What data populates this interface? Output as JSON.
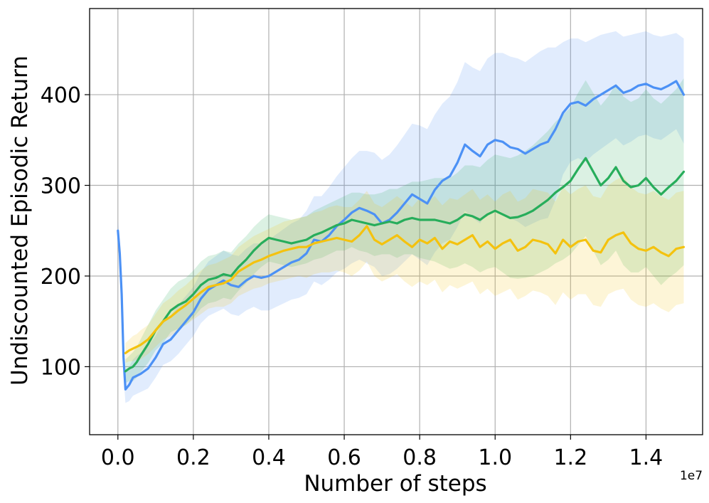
{
  "chart_data": {
    "type": "line",
    "title": "",
    "xlabel": "Number of steps",
    "ylabel": "Undiscounted Episodic Return",
    "x_offset_label": "1e7",
    "x_scale": 10000000,
    "xlim": [
      -0.075,
      1.55
    ],
    "ylim": [
      25,
      495
    ],
    "xticks": [
      0.0,
      0.2,
      0.4,
      0.6,
      0.8,
      1.0,
      1.2,
      1.4
    ],
    "xtick_labels": [
      "0.0",
      "0.2",
      "0.4",
      "0.6",
      "0.8",
      "1.0",
      "1.2",
      "1.4"
    ],
    "yticks": [
      100,
      200,
      300,
      400
    ],
    "ytick_labels": [
      "100",
      "200",
      "300",
      "400"
    ],
    "grid": true,
    "legend": "none",
    "colors": {
      "blue": "#4c91f5",
      "green": "#27ad5b",
      "yellow": "#f4c20f"
    },
    "series": [
      {
        "color": "blue",
        "x": [
          0.0,
          0.005,
          0.01,
          0.015,
          0.02,
          0.03,
          0.04,
          0.05,
          0.06,
          0.08,
          0.1,
          0.12,
          0.14,
          0.16,
          0.18,
          0.2,
          0.22,
          0.24,
          0.26,
          0.28,
          0.3,
          0.32,
          0.34,
          0.36,
          0.38,
          0.4,
          0.42,
          0.44,
          0.46,
          0.48,
          0.5,
          0.52,
          0.54,
          0.56,
          0.58,
          0.6,
          0.62,
          0.64,
          0.66,
          0.68,
          0.7,
          0.72,
          0.74,
          0.76,
          0.78,
          0.8,
          0.82,
          0.84,
          0.86,
          0.88,
          0.9,
          0.92,
          0.94,
          0.96,
          0.98,
          1.0,
          1.02,
          1.04,
          1.06,
          1.08,
          1.1,
          1.12,
          1.14,
          1.16,
          1.18,
          1.2,
          1.22,
          1.24,
          1.26,
          1.28,
          1.3,
          1.32,
          1.34,
          1.36,
          1.38,
          1.4,
          1.42,
          1.44,
          1.46,
          1.48,
          1.5
        ],
        "y": [
          250,
          225,
          180,
          110,
          75,
          80,
          88,
          90,
          92,
          98,
          110,
          125,
          130,
          140,
          150,
          160,
          175,
          185,
          190,
          195,
          190,
          188,
          195,
          200,
          198,
          200,
          205,
          210,
          215,
          218,
          225,
          240,
          238,
          245,
          255,
          262,
          270,
          275,
          272,
          268,
          258,
          262,
          270,
          280,
          290,
          285,
          280,
          295,
          305,
          310,
          325,
          345,
          338,
          332,
          345,
          350,
          348,
          342,
          340,
          335,
          340,
          345,
          348,
          362,
          380,
          390,
          392,
          388,
          395,
          400,
          405,
          410,
          402,
          405,
          410,
          412,
          408,
          406,
          410,
          415,
          400
        ],
        "upper": [
          262,
          240,
          200,
          130,
          95,
          100,
          108,
          112,
          115,
          122,
          134,
          150,
          156,
          168,
          178,
          188,
          204,
          216,
          222,
          228,
          224,
          222,
          230,
          236,
          236,
          240,
          246,
          252,
          258,
          262,
          272,
          288,
          288,
          298,
          310,
          320,
          330,
          338,
          338,
          336,
          328,
          334,
          344,
          356,
          368,
          366,
          362,
          378,
          390,
          398,
          414,
          436,
          430,
          426,
          440,
          446,
          446,
          442,
          440,
          436,
          442,
          448,
          452,
          452,
          458,
          462,
          462,
          458,
          462,
          466,
          468,
          470,
          464,
          466,
          468,
          470,
          466,
          464,
          466,
          468,
          462
        ],
        "lower": [
          238,
          212,
          165,
          90,
          60,
          62,
          68,
          70,
          72,
          76,
          88,
          102,
          106,
          114,
          124,
          134,
          148,
          156,
          160,
          164,
          158,
          156,
          162,
          166,
          162,
          162,
          166,
          170,
          174,
          176,
          180,
          194,
          190,
          196,
          204,
          208,
          214,
          218,
          214,
          210,
          200,
          202,
          208,
          216,
          224,
          218,
          212,
          226,
          236,
          240,
          254,
          272,
          264,
          258,
          270,
          274,
          270,
          264,
          260,
          254,
          258,
          262,
          264,
          284,
          312,
          326,
          330,
          326,
          334,
          340,
          346,
          352,
          344,
          348,
          354,
          356,
          352,
          350,
          356,
          362,
          346
        ]
      },
      {
        "color": "green",
        "x": [
          0.02,
          0.03,
          0.04,
          0.05,
          0.06,
          0.08,
          0.1,
          0.12,
          0.14,
          0.16,
          0.18,
          0.2,
          0.22,
          0.24,
          0.26,
          0.28,
          0.3,
          0.32,
          0.34,
          0.36,
          0.38,
          0.4,
          0.42,
          0.44,
          0.46,
          0.48,
          0.5,
          0.52,
          0.54,
          0.56,
          0.58,
          0.6,
          0.62,
          0.64,
          0.66,
          0.68,
          0.7,
          0.72,
          0.74,
          0.76,
          0.78,
          0.8,
          0.82,
          0.84,
          0.86,
          0.88,
          0.9,
          0.92,
          0.94,
          0.96,
          0.98,
          1.0,
          1.02,
          1.04,
          1.06,
          1.08,
          1.1,
          1.12,
          1.14,
          1.16,
          1.18,
          1.2,
          1.22,
          1.24,
          1.26,
          1.28,
          1.3,
          1.32,
          1.34,
          1.36,
          1.38,
          1.4,
          1.42,
          1.44,
          1.46,
          1.48,
          1.5
        ],
        "y": [
          95,
          98,
          100,
          105,
          112,
          125,
          140,
          150,
          162,
          168,
          172,
          180,
          190,
          196,
          198,
          202,
          200,
          210,
          218,
          228,
          236,
          242,
          240,
          238,
          236,
          238,
          240,
          245,
          248,
          252,
          256,
          258,
          262,
          260,
          258,
          256,
          258,
          260,
          258,
          262,
          264,
          262,
          262,
          262,
          260,
          258,
          262,
          268,
          266,
          262,
          268,
          272,
          268,
          264,
          265,
          268,
          272,
          278,
          284,
          292,
          298,
          305,
          318,
          330,
          315,
          300,
          308,
          320,
          305,
          298,
          300,
          308,
          298,
          290,
          298,
          305,
          315
        ],
        "upper": [
          108,
          112,
          116,
          122,
          130,
          146,
          162,
          174,
          186,
          194,
          198,
          206,
          216,
          222,
          224,
          228,
          226,
          236,
          244,
          254,
          262,
          268,
          266,
          264,
          262,
          264,
          266,
          272,
          276,
          280,
          284,
          288,
          292,
          292,
          290,
          290,
          292,
          296,
          296,
          300,
          304,
          304,
          306,
          308,
          308,
          308,
          314,
          322,
          322,
          320,
          328,
          334,
          332,
          330,
          333,
          338,
          344,
          352,
          360,
          370,
          378,
          386,
          402,
          416,
          402,
          388,
          398,
          412,
          398,
          392,
          396,
          406,
          396,
          390,
          398,
          406,
          418
        ],
        "lower": [
          82,
          84,
          84,
          88,
          94,
          104,
          118,
          126,
          138,
          142,
          146,
          154,
          164,
          170,
          172,
          176,
          174,
          184,
          192,
          202,
          210,
          216,
          214,
          212,
          210,
          212,
          214,
          218,
          220,
          224,
          228,
          228,
          232,
          228,
          226,
          222,
          224,
          224,
          220,
          224,
          224,
          220,
          218,
          216,
          212,
          208,
          210,
          214,
          210,
          204,
          208,
          210,
          204,
          198,
          197,
          198,
          200,
          204,
          208,
          214,
          218,
          224,
          234,
          244,
          228,
          212,
          218,
          228,
          212,
          204,
          204,
          210,
          200,
          190,
          198,
          204,
          212
        ]
      },
      {
        "color": "yellow",
        "x": [
          0.02,
          0.03,
          0.04,
          0.05,
          0.06,
          0.08,
          0.1,
          0.12,
          0.14,
          0.16,
          0.18,
          0.2,
          0.22,
          0.24,
          0.26,
          0.28,
          0.3,
          0.32,
          0.34,
          0.36,
          0.38,
          0.4,
          0.42,
          0.44,
          0.46,
          0.48,
          0.5,
          0.52,
          0.54,
          0.56,
          0.58,
          0.6,
          0.62,
          0.64,
          0.66,
          0.68,
          0.7,
          0.72,
          0.74,
          0.76,
          0.78,
          0.8,
          0.82,
          0.84,
          0.86,
          0.88,
          0.9,
          0.92,
          0.94,
          0.96,
          0.98,
          1.0,
          1.02,
          1.04,
          1.06,
          1.08,
          1.1,
          1.12,
          1.14,
          1.16,
          1.18,
          1.2,
          1.22,
          1.24,
          1.26,
          1.28,
          1.3,
          1.32,
          1.34,
          1.36,
          1.38,
          1.4,
          1.42,
          1.44,
          1.46,
          1.48,
          1.5
        ],
        "y": [
          115,
          118,
          120,
          122,
          124,
          130,
          140,
          150,
          155,
          162,
          168,
          175,
          182,
          188,
          190,
          192,
          196,
          205,
          210,
          215,
          218,
          222,
          225,
          228,
          230,
          232,
          232,
          236,
          238,
          240,
          242,
          240,
          238,
          245,
          255,
          240,
          235,
          240,
          245,
          238,
          232,
          240,
          236,
          242,
          230,
          238,
          235,
          240,
          245,
          232,
          238,
          230,
          236,
          240,
          228,
          232,
          240,
          238,
          235,
          225,
          240,
          232,
          238,
          240,
          228,
          226,
          240,
          245,
          248,
          236,
          230,
          228,
          232,
          226,
          222,
          230,
          232
        ],
        "upper": [
          126,
          130,
          134,
          136,
          140,
          146,
          158,
          170,
          176,
          184,
          190,
          198,
          206,
          212,
          214,
          218,
          222,
          232,
          238,
          244,
          248,
          252,
          256,
          260,
          262,
          264,
          266,
          270,
          272,
          276,
          278,
          276,
          276,
          284,
          294,
          280,
          276,
          282,
          288,
          282,
          276,
          286,
          282,
          288,
          278,
          286,
          284,
          290,
          296,
          284,
          290,
          282,
          290,
          294,
          282,
          286,
          296,
          294,
          292,
          282,
          298,
          290,
          296,
          300,
          288,
          286,
          300,
          306,
          310,
          298,
          292,
          290,
          294,
          288,
          284,
          292,
          294
        ],
        "lower": [
          104,
          106,
          106,
          108,
          108,
          114,
          122,
          130,
          134,
          140,
          146,
          152,
          158,
          164,
          166,
          166,
          170,
          178,
          182,
          186,
          188,
          192,
          194,
          196,
          198,
          200,
          198,
          202,
          204,
          204,
          206,
          204,
          200,
          206,
          216,
          200,
          194,
          198,
          202,
          194,
          188,
          194,
          190,
          196,
          182,
          190,
          186,
          190,
          194,
          180,
          186,
          178,
          182,
          186,
          174,
          178,
          184,
          182,
          178,
          168,
          182,
          174,
          180,
          180,
          168,
          166,
          180,
          184,
          186,
          174,
          168,
          166,
          170,
          164,
          160,
          168,
          170
        ]
      }
    ]
  }
}
